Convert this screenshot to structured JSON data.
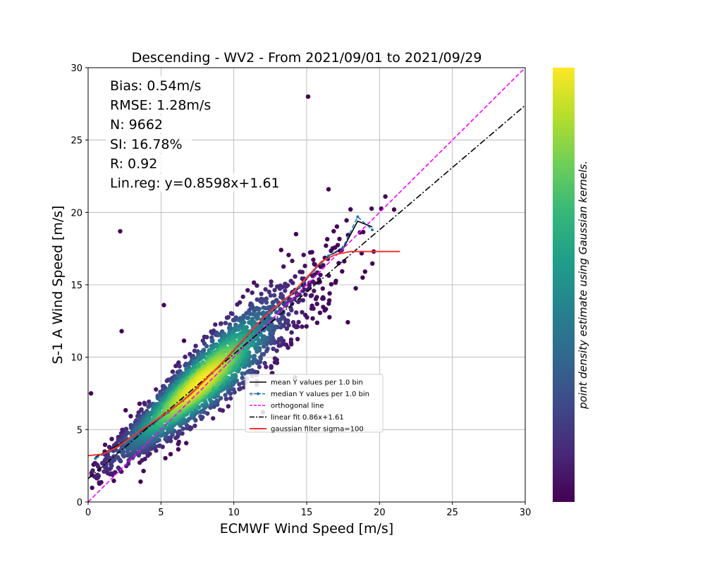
{
  "chart_data": {
    "type": "scatter",
    "title": "Descending - WV2 - From 2021/09/01 to 2021/09/29",
    "xlabel": "ECMWF Wind Speed [m/s]",
    "ylabel": "S-1 A Wind Speed [m/s]",
    "xlim": [
      0,
      30
    ],
    "ylim": [
      0,
      30
    ],
    "xticks": [
      "0",
      "5",
      "10",
      "15",
      "20",
      "25",
      "30"
    ],
    "yticks": [
      "0",
      "5",
      "10",
      "15",
      "20",
      "25",
      "30"
    ],
    "grid": true,
    "colorbar_label": "point density estimate using Gaussian kernels.",
    "colormap": [
      "#440154",
      "#482878",
      "#3e4989",
      "#31688e",
      "#26828e",
      "#1f9e89",
      "#35b779",
      "#6ece58",
      "#b5de2b",
      "#fde725"
    ],
    "stats": [
      "Bias: 0.54m/s",
      "RMSE: 1.28m/s",
      "N: 9662",
      "SI: 16.78%",
      "R: 0.92",
      "Lin.reg: y=0.8598x+1.61"
    ],
    "legend_position": "lower-right",
    "series": [
      {
        "name": "mean Y values per 1.0 bin",
        "style": "solid",
        "color": "#000000",
        "x": [
          0.5,
          1.5,
          2.5,
          3.5,
          4.5,
          5.5,
          6.5,
          7.5,
          8.5,
          9.5,
          10.5,
          11.5,
          12.5,
          13.5,
          14.5,
          15.5,
          16.5,
          17.5,
          18.5,
          19.5
        ],
        "y": [
          3.1,
          3.6,
          4.2,
          4.8,
          5.5,
          6.2,
          7.0,
          7.9,
          8.9,
          9.9,
          11.0,
          12.1,
          13.0,
          13.9,
          14.8,
          16.0,
          17.0,
          17.5,
          19.4,
          19.0
        ]
      },
      {
        "name": "median Y values per 1.0 bin",
        "style": "dashed",
        "color": "#1f77b4",
        "x": [
          0.5,
          1.5,
          2.5,
          3.5,
          4.5,
          5.5,
          6.5,
          7.5,
          8.5,
          9.5,
          10.5,
          11.5,
          12.5,
          13.5,
          14.5,
          15.5,
          16.5,
          17.5,
          18.5,
          19.5
        ],
        "y": [
          3.0,
          3.5,
          4.1,
          4.7,
          5.4,
          6.2,
          7.0,
          7.9,
          8.9,
          9.9,
          11.0,
          12.1,
          13.0,
          13.9,
          14.8,
          16.0,
          17.0,
          17.6,
          19.7,
          18.8
        ]
      },
      {
        "name": "orthogonal line",
        "style": "dashed",
        "color": "#ff00ff",
        "x": [
          0,
          30
        ],
        "y": [
          0,
          30
        ]
      },
      {
        "name": "linear fit 0.86x+1.61",
        "style": "dashdot",
        "color": "#000000",
        "x": [
          0,
          30
        ],
        "y": [
          1.61,
          27.4
        ]
      },
      {
        "name": "gaussian filter sigma=100",
        "style": "solid",
        "color": "#ff3333",
        "x": [
          0,
          1,
          2,
          3,
          4,
          5,
          6,
          7,
          8,
          9,
          10,
          11,
          12,
          13,
          14,
          15,
          16,
          17,
          18,
          19,
          20,
          21.4
        ],
        "y": [
          3.2,
          3.3,
          3.8,
          4.5,
          5.2,
          5.9,
          6.6,
          7.4,
          8.4,
          9.4,
          10.5,
          11.6,
          12.7,
          13.6,
          14.4,
          15.5,
          16.6,
          17.1,
          17.3,
          17.3,
          17.3,
          17.3
        ]
      }
    ],
    "outliers": [
      {
        "x": 15.1,
        "y": 28.0
      },
      {
        "x": 2.2,
        "y": 18.7
      },
      {
        "x": 2.3,
        "y": 11.8
      },
      {
        "x": 5.2,
        "y": 13.6
      },
      {
        "x": 0.2,
        "y": 7.5
      },
      {
        "x": 19.6,
        "y": 17.3
      },
      {
        "x": 21.0,
        "y": 20.2
      },
      {
        "x": 20.4,
        "y": 21.1
      },
      {
        "x": 16.5,
        "y": 21.6
      },
      {
        "x": 12.0,
        "y": 6.2
      },
      {
        "x": 14.2,
        "y": 8.6
      },
      {
        "x": 3.6,
        "y": 1.4
      }
    ]
  }
}
